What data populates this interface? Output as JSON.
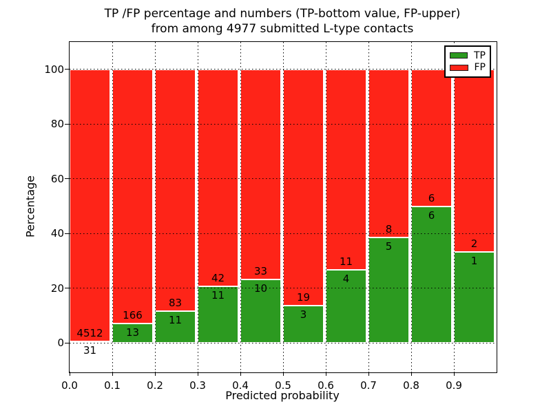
{
  "chart_data": {
    "type": "bar",
    "stacked": true,
    "unit": "percent",
    "title": "TP /FP percentage and numbers (TP-bottom value, FP-upper)\nfrom among 4977 submitted L-type contacts",
    "title_line1": "TP /FP percentage and numbers (TP-bottom value, FP-upper)",
    "title_line2": "from among 4977 submitted L-type contacts",
    "xlabel": "Predicted probability",
    "ylabel": "Percentage",
    "x_tick_labels": [
      "0.0",
      "0.1",
      "0.2",
      "0.3",
      "0.4",
      "0.5",
      "0.6",
      "0.7",
      "0.8",
      "0.9"
    ],
    "y_ticks": [
      0,
      20,
      40,
      60,
      80,
      100
    ],
    "xlim": [
      0.0,
      1.0
    ],
    "ylim": [
      -10.7,
      110
    ],
    "grid": "dotted",
    "legend": {
      "position": "upper right",
      "entries": [
        {
          "label": "TP",
          "color": "#2c9a20"
        },
        {
          "label": "FP",
          "color": "#fe2418"
        }
      ]
    },
    "bins": [
      {
        "range": "0.0-0.1",
        "tp": 31,
        "fp": 4512,
        "tp_pct": 0.7
      },
      {
        "range": "0.1-0.2",
        "tp": 13,
        "fp": 166,
        "tp_pct": 7.3
      },
      {
        "range": "0.2-0.3",
        "tp": 11,
        "fp": 83,
        "tp_pct": 11.7
      },
      {
        "range": "0.3-0.4",
        "tp": 11,
        "fp": 42,
        "tp_pct": 20.8
      },
      {
        "range": "0.4-0.5",
        "tp": 10,
        "fp": 33,
        "tp_pct": 23.3
      },
      {
        "range": "0.5-0.6",
        "tp": 3,
        "fp": 19,
        "tp_pct": 13.6
      },
      {
        "range": "0.6-0.7",
        "tp": 4,
        "fp": 11,
        "tp_pct": 26.7
      },
      {
        "range": "0.7-0.8",
        "tp": 5,
        "fp": 8,
        "tp_pct": 38.5
      },
      {
        "range": "0.8-0.9",
        "tp": 6,
        "fp": 6,
        "tp_pct": 50.0
      },
      {
        "range": "0.9-1.0",
        "tp": 1,
        "fp": 2,
        "tp_pct": 33.3
      }
    ]
  }
}
